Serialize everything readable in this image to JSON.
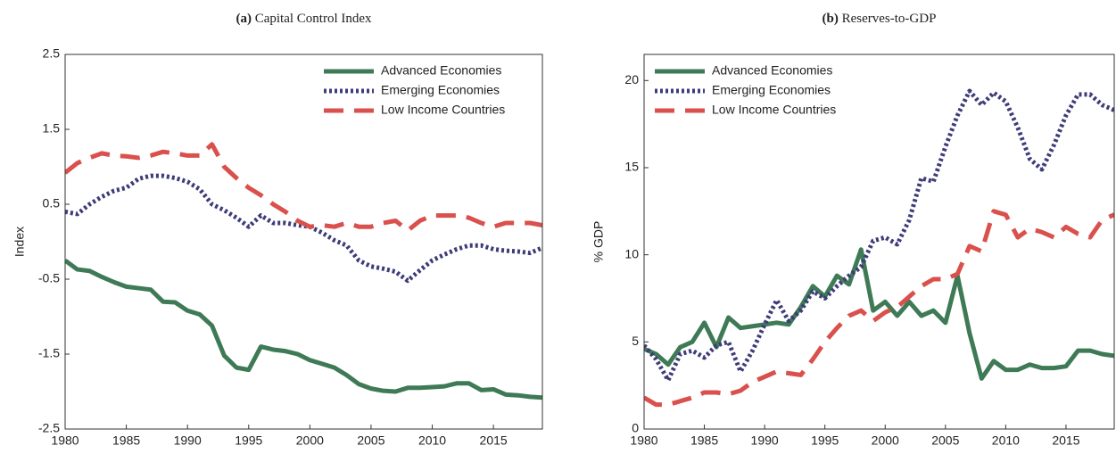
{
  "chart_data": [
    {
      "type": "line",
      "title_label": "(a)",
      "title": "Capital Control Index",
      "ylabel": "Index",
      "x": [
        1980,
        1981,
        1982,
        1983,
        1984,
        1985,
        1986,
        1987,
        1988,
        1989,
        1990,
        1991,
        1992,
        1993,
        1994,
        1995,
        1996,
        1997,
        1998,
        1999,
        2000,
        2001,
        2002,
        2003,
        2004,
        2005,
        2006,
        2007,
        2008,
        2009,
        2010,
        2011,
        2012,
        2013,
        2014,
        2015,
        2016,
        2017,
        2018,
        2019
      ],
      "xlim": [
        1980,
        2019
      ],
      "xticks": [
        1980,
        1985,
        1990,
        1995,
        2000,
        2005,
        2010,
        2015
      ],
      "ylim": [
        -2.5,
        2.5
      ],
      "yticks": [
        -2.5,
        -1.5,
        -0.5,
        0.5,
        1.5,
        2.5
      ],
      "grid": false,
      "legend": "upper right",
      "series": [
        {
          "name": "Advanced Economies",
          "color": "#3f7a56",
          "style": "solid",
          "values": [
            -0.25,
            -0.37,
            -0.39,
            -0.47,
            -0.54,
            -0.6,
            -0.62,
            -0.64,
            -0.8,
            -0.81,
            -0.92,
            -0.97,
            -1.12,
            -1.52,
            -1.68,
            -1.71,
            -1.4,
            -1.44,
            -1.46,
            -1.5,
            -1.58,
            -1.63,
            -1.68,
            -1.78,
            -1.9,
            -1.96,
            -1.99,
            -2.0,
            -1.95,
            -1.95,
            -1.94,
            -1.93,
            -1.89,
            -1.89,
            -1.98,
            -1.97,
            -2.04,
            -2.05,
            -2.07,
            -2.08
          ]
        },
        {
          "name": "Emerging Economies",
          "color": "#3d3c78",
          "style": "dotted",
          "values": [
            0.4,
            0.37,
            0.5,
            0.6,
            0.68,
            0.72,
            0.84,
            0.88,
            0.88,
            0.85,
            0.8,
            0.7,
            0.5,
            0.42,
            0.32,
            0.2,
            0.35,
            0.25,
            0.25,
            0.22,
            0.2,
            0.12,
            0.02,
            -0.05,
            -0.25,
            -0.33,
            -0.36,
            -0.4,
            -0.52,
            -0.38,
            -0.25,
            -0.17,
            -0.1,
            -0.05,
            -0.05,
            -0.1,
            -0.12,
            -0.13,
            -0.15,
            -0.08
          ]
        },
        {
          "name": "Low Income Countries",
          "color": "#d9504c",
          "style": "dashed",
          "values": [
            0.92,
            1.05,
            1.12,
            1.18,
            1.15,
            1.14,
            1.12,
            1.15,
            1.2,
            1.18,
            1.15,
            1.15,
            1.3,
            1.0,
            0.85,
            0.72,
            0.62,
            0.5,
            0.4,
            0.28,
            0.2,
            0.22,
            0.2,
            0.25,
            0.2,
            0.2,
            0.25,
            0.28,
            0.15,
            0.28,
            0.35,
            0.35,
            0.35,
            0.32,
            0.25,
            0.2,
            0.25,
            0.25,
            0.25,
            0.22
          ]
        }
      ]
    },
    {
      "type": "line",
      "title_label": "(b)",
      "title": "Reserves-to-GDP",
      "ylabel": "% GDP",
      "x": [
        1980,
        1981,
        1982,
        1983,
        1984,
        1985,
        1986,
        1987,
        1988,
        1989,
        1990,
        1991,
        1992,
        1993,
        1994,
        1995,
        1996,
        1997,
        1998,
        1999,
        2000,
        2001,
        2002,
        2003,
        2004,
        2005,
        2006,
        2007,
        2008,
        2009,
        2010,
        2011,
        2012,
        2013,
        2014,
        2015,
        2016,
        2017,
        2018,
        2019
      ],
      "xlim": [
        1980,
        2019
      ],
      "xticks": [
        1980,
        1985,
        1990,
        1995,
        2000,
        2005,
        2010,
        2015
      ],
      "ylim": [
        0,
        21.5
      ],
      "yticks": [
        0,
        5,
        10,
        15,
        20
      ],
      "grid": false,
      "legend": "upper left",
      "series": [
        {
          "name": "Advanced Economies",
          "color": "#3f7a56",
          "style": "solid",
          "values": [
            4.6,
            4.3,
            3.7,
            4.7,
            5.0,
            6.1,
            4.7,
            6.4,
            5.8,
            5.9,
            6.0,
            6.1,
            6.0,
            7.0,
            8.2,
            7.6,
            8.8,
            8.3,
            10.3,
            6.8,
            7.3,
            6.5,
            7.3,
            6.5,
            6.8,
            6.1,
            8.8,
            5.5,
            2.9,
            3.9,
            3.4,
            3.4,
            3.7,
            3.5,
            3.5,
            3.6,
            4.5,
            4.5,
            4.3,
            4.2
          ]
        },
        {
          "name": "Emerging Economies",
          "color": "#3d3c78",
          "style": "dotted",
          "values": [
            4.8,
            4.0,
            2.8,
            4.3,
            4.5,
            4.1,
            4.8,
            5.0,
            3.3,
            4.5,
            6.0,
            7.4,
            6.2,
            6.8,
            7.9,
            7.5,
            8.2,
            8.8,
            9.3,
            10.8,
            11.0,
            10.6,
            12.0,
            14.4,
            14.2,
            16.2,
            18.0,
            19.4,
            18.6,
            19.3,
            18.8,
            17.3,
            15.5,
            14.9,
            16.3,
            18.0,
            19.2,
            19.2,
            18.6,
            18.3
          ]
        },
        {
          "name": "Low Income Countries",
          "color": "#d9504c",
          "style": "dashed",
          "values": [
            1.8,
            1.4,
            1.4,
            1.6,
            1.8,
            2.1,
            2.1,
            2.0,
            2.2,
            2.7,
            3.0,
            3.3,
            3.2,
            3.1,
            4.0,
            5.0,
            5.8,
            6.5,
            6.8,
            6.2,
            6.7,
            7.0,
            7.6,
            8.2,
            8.6,
            8.6,
            8.9,
            10.5,
            10.2,
            12.5,
            12.3,
            11.0,
            11.5,
            11.3,
            11.0,
            11.6,
            11.2,
            11.0,
            12.0,
            12.3
          ]
        }
      ]
    }
  ]
}
